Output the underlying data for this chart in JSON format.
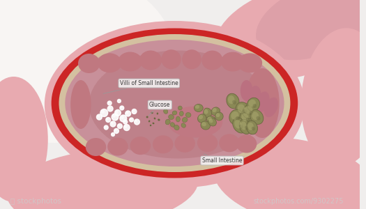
{
  "bg_color": "#f0eeed",
  "labels": {
    "villi": "Villi of Small Intestine",
    "glucose": "Glucose",
    "small_intestine": "Small Intestine"
  },
  "label_box_color": "#f5f5f5",
  "label_text_color": "#333333",
  "outer_intestine_pink": "#e8aab0",
  "outer_intestine_dark": "#d4909a",
  "red_layer_color": "#cc2525",
  "tan_layer_color": "#d4c0a0",
  "lumen_color": "#c8909a",
  "lumen_inner_color": "#b87880",
  "villi_fold_color": "#c07880",
  "particle_color": "#8a8855",
  "particle_dark": "#6a6840",
  "particle_light": "#aaa870",
  "bubble_color": "#ffffff",
  "white_bg": "#f5f2f0",
  "watermark_text": "stockphotos",
  "watermark_id": "9302275"
}
